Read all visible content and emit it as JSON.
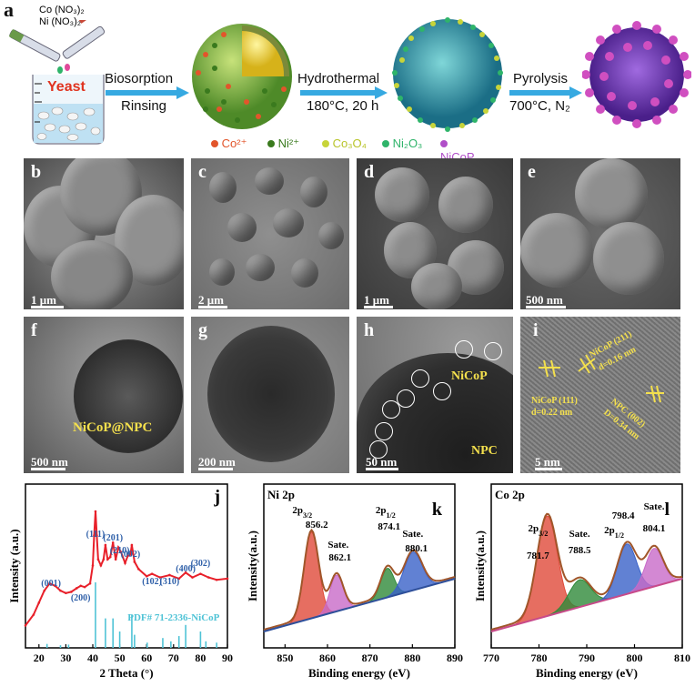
{
  "panels": {
    "a": "a",
    "b": "b",
    "c": "c",
    "d": "d",
    "e": "e",
    "f": "f",
    "g": "g",
    "h": "h",
    "i": "i",
    "j": "j",
    "k": "k",
    "l": "l"
  },
  "schematic": {
    "reagent1": "Co (NO₃)₂",
    "reagent2": "Ni (NO₃)₂",
    "yeast": "Yeast",
    "step1_top": "Biosorption",
    "step1_bottom": "Rinsing",
    "step2_top": "Hydrothermal",
    "step2_bottom": "180°C, 20 h",
    "step3_top": "Pyrolysis",
    "step3_bottom": "700°C, N₂",
    "legend": [
      {
        "label": "Co²⁺",
        "color": "#e2552b"
      },
      {
        "label": "Ni²⁺",
        "color": "#3a7a1e"
      },
      {
        "label": "Co₃O₄",
        "color": "#c7d43a"
      },
      {
        "label": "Ni₂O₃",
        "color": "#2fb46a"
      },
      {
        "label": "NiCoP",
        "color": "#b04fc8"
      }
    ]
  },
  "scalebars": {
    "b": "1 μm",
    "c": "2 μm",
    "d": "1 μm",
    "e": "500 nm",
    "f": "500 nm",
    "g": "200 nm",
    "h": "50 nm",
    "i": "5 nm"
  },
  "tem_labels": {
    "f": "NiCoP@NPC",
    "h_nicop": "NiCoP",
    "h_npc": "NPC",
    "i_111_a": "NiCoP (111)",
    "i_111_b": "d=0.22 nm",
    "i_211_a": "NiCoP (211)",
    "i_211_b": "d=0.16 nm",
    "i_002_a": "NPC (002)",
    "i_002_b": "D=0.34 nm"
  },
  "chart_data": [
    {
      "type": "line",
      "panel": "j",
      "xlabel": "2 Theta (°)",
      "ylabel": "Intensity (a.u.)",
      "xlim": [
        15,
        90
      ],
      "xticks": [
        20,
        30,
        40,
        50,
        60,
        70,
        80,
        90
      ],
      "reference": "PDF# 71-2336-NiCoP",
      "peak_labels": [
        {
          "hkl": "(001)",
          "x": 24.5
        },
        {
          "hkl": "(200)",
          "x": 35.5
        },
        {
          "hkl": "(111)",
          "x": 41.0
        },
        {
          "hkl": "(201)",
          "x": 47.5
        },
        {
          "hkl": "(210)",
          "x": 50.0
        },
        {
          "hkl": "(002)",
          "x": 54.0
        },
        {
          "hkl": "(102)",
          "x": 62.0
        },
        {
          "hkl": "(310)",
          "x": 68.5
        },
        {
          "hkl": "(400)",
          "x": 74.5
        },
        {
          "hkl": "(302)",
          "x": 80.0
        }
      ],
      "reference_lines": [
        {
          "x": 23.0,
          "h": 0.06
        },
        {
          "x": 28.0,
          "h": 0.04
        },
        {
          "x": 31.0,
          "h": 0.05
        },
        {
          "x": 41.0,
          "h": 1.0
        },
        {
          "x": 44.7,
          "h": 0.45
        },
        {
          "x": 47.5,
          "h": 0.45
        },
        {
          "x": 50.0,
          "h": 0.25
        },
        {
          "x": 54.5,
          "h": 0.5
        },
        {
          "x": 55.5,
          "h": 0.2
        },
        {
          "x": 60.2,
          "h": 0.08
        },
        {
          "x": 66.0,
          "h": 0.15
        },
        {
          "x": 69.0,
          "h": 0.1
        },
        {
          "x": 72.0,
          "h": 0.18
        },
        {
          "x": 74.5,
          "h": 0.35
        },
        {
          "x": 80.0,
          "h": 0.25
        },
        {
          "x": 82.0,
          "h": 0.1
        },
        {
          "x": 86.0,
          "h": 0.08
        }
      ],
      "series": [
        {
          "x": [
            15,
            18,
            20,
            22,
            24,
            26,
            28,
            30,
            32,
            34,
            35.5,
            37,
            39,
            40,
            40.5,
            41,
            41.5,
            42,
            43,
            44,
            44.7,
            45.5,
            46.5,
            47.5,
            48.5,
            49.5,
            50.5,
            52,
            53,
            54,
            54.5,
            55.5,
            57,
            60,
            62,
            65,
            68.5,
            72,
            74.5,
            77,
            80,
            83,
            86,
            90
          ],
          "y": [
            0.05,
            0.14,
            0.24,
            0.34,
            0.4,
            0.38,
            0.34,
            0.32,
            0.33,
            0.36,
            0.38,
            0.37,
            0.4,
            0.55,
            0.8,
            1.0,
            0.8,
            0.6,
            0.55,
            0.6,
            0.72,
            0.6,
            0.62,
            0.74,
            0.6,
            0.7,
            0.66,
            0.57,
            0.63,
            0.64,
            0.72,
            0.58,
            0.52,
            0.46,
            0.48,
            0.45,
            0.47,
            0.44,
            0.49,
            0.45,
            0.48,
            0.45,
            0.43,
            0.44
          ]
        }
      ]
    },
    {
      "type": "area",
      "panel": "k",
      "title": "Ni 2p",
      "xlabel": "Binding energy (eV)",
      "ylabel": "Intensity(a.u.)",
      "xlim": [
        845,
        890
      ],
      "xticks": [
        850,
        860,
        870,
        880,
        890
      ],
      "peaks": [
        {
          "label": "2p3/2",
          "position": 856.2,
          "color": "#e04a3a"
        },
        {
          "label": "Sate.",
          "position": 862.1,
          "color": "#c86ac8"
        },
        {
          "label": "2p1/2",
          "position": 874.1,
          "color": "#2f8a3a"
        },
        {
          "label": "Sate.",
          "position": 880.1,
          "color": "#3a62c8"
        }
      ],
      "peak_values": [
        "856.2",
        "862.1",
        "874.1",
        "880.1"
      ]
    },
    {
      "type": "area",
      "panel": "l",
      "title": "Co 2p",
      "xlabel": "Binding energy (eV)",
      "ylabel": "Intensity(a.u.)",
      "xlim": [
        770,
        810
      ],
      "xticks": [
        770,
        780,
        790,
        800,
        810
      ],
      "peaks": [
        {
          "label": "2p3/2",
          "position": 781.7,
          "color": "#e04a3a"
        },
        {
          "label": "Sate.",
          "position": 788.5,
          "color": "#2f8a3a"
        },
        {
          "label": "2p1/2",
          "position": 798.4,
          "color": "#3a62c8"
        },
        {
          "label": "Sate.",
          "position": 804.1,
          "color": "#c86ac8"
        }
      ],
      "peak_values": [
        "781.7",
        "788.5",
        "798.4",
        "804.1"
      ]
    }
  ]
}
